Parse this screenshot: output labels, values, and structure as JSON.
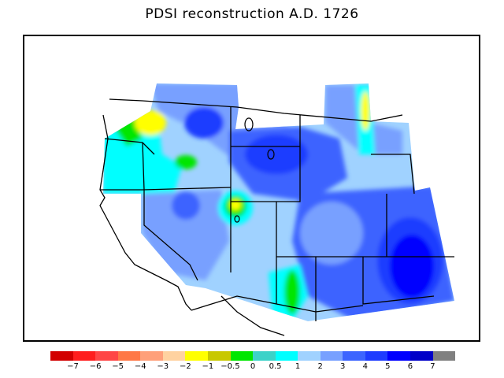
{
  "title": "PDSI reconstruction A.D. 1726",
  "legend": {
    "colors": [
      "#d20000",
      "#ff1e1e",
      "#ff4646",
      "#ff7846",
      "#ffa07a",
      "#ffd2a0",
      "#ffff00",
      "#c8c800",
      "#00e600",
      "#3cd2c8",
      "#00ffff",
      "#a0d2ff",
      "#78a0ff",
      "#3c64ff",
      "#1e3cff",
      "#0000ff",
      "#0000c8",
      "#808080"
    ],
    "labels": [
      "−7",
      "−6",
      "−5",
      "−4",
      "−3",
      "−2",
      "−1",
      "−0.5",
      "0",
      "0.5",
      "1",
      "2",
      "3",
      "4",
      "5",
      "6",
      "7"
    ]
  },
  "map": {
    "region": "Western United States",
    "variable": "PDSI",
    "year": "1726"
  }
}
